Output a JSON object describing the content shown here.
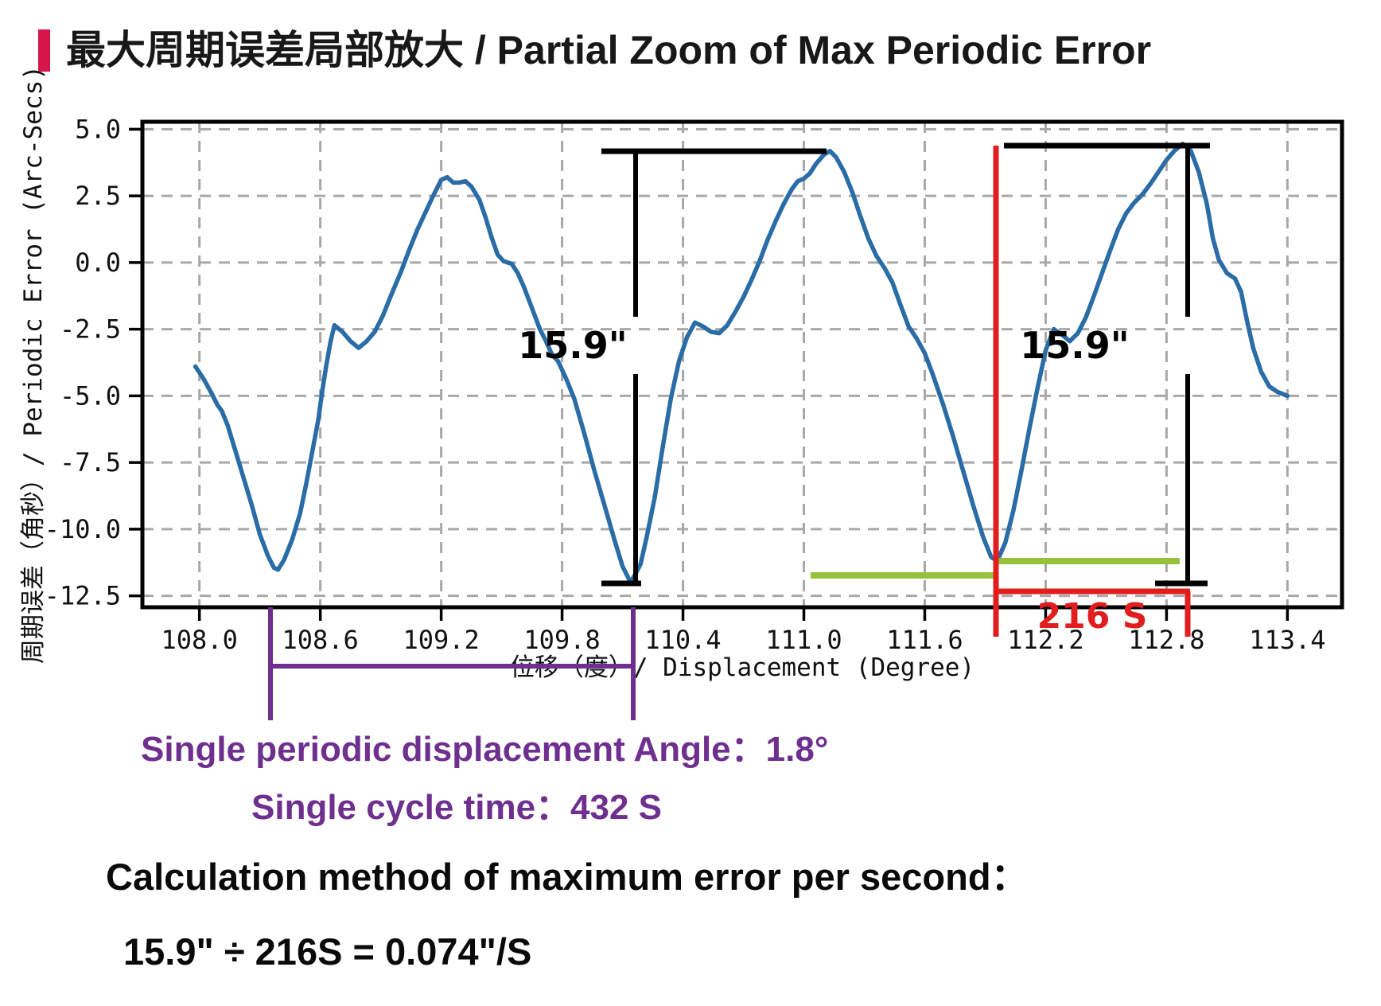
{
  "title": {
    "text": "最大周期误差局部放大 / Partial Zoom of Max Periodic Error",
    "accent_color": "#d4164a"
  },
  "chart_data": {
    "type": "line",
    "title": "",
    "xlabel": "位移（度）/ Displacement (Degree)",
    "ylabel": "周期误差（角秒）/ Periodic Error (Arc-Secs)",
    "xlim": [
      107.717,
      113.671
    ],
    "ylim": [
      -12.93,
      5.28
    ],
    "grid": true,
    "grid_color": "#a8a8a8",
    "line_color": "#2a6ca6",
    "x_ticks": [
      108.0,
      108.6,
      109.2,
      109.8,
      110.4,
      111.0,
      111.6,
      112.2,
      112.8,
      113.4
    ],
    "x_tick_labels": [
      "108.0",
      "108.6",
      "109.2",
      "109.8",
      "110.4",
      "111.0",
      "111.6",
      "112.2",
      "112.8",
      "113.4"
    ],
    "y_ticks": [
      5.0,
      2.5,
      0.0,
      -2.5,
      -5.0,
      -7.5,
      -10.0,
      -12.5
    ],
    "y_tick_labels": [
      "5.0",
      "2.5",
      "0.0",
      "-2.5",
      "-5.0",
      "-7.5",
      "-10.0",
      "-12.5"
    ],
    "series": [
      {
        "name": "periodic-error",
        "points": [
          [
            107.98,
            -3.9
          ],
          [
            108.02,
            -4.35
          ],
          [
            108.06,
            -4.9
          ],
          [
            108.09,
            -5.35
          ],
          [
            108.11,
            -5.55
          ],
          [
            108.14,
            -6.1
          ],
          [
            108.18,
            -7.1
          ],
          [
            108.22,
            -8.1
          ],
          [
            108.26,
            -9.1
          ],
          [
            108.3,
            -10.2
          ],
          [
            108.34,
            -11.0
          ],
          [
            108.37,
            -11.45
          ],
          [
            108.39,
            -11.52
          ],
          [
            108.42,
            -11.15
          ],
          [
            108.46,
            -10.4
          ],
          [
            108.5,
            -9.4
          ],
          [
            108.53,
            -8.3
          ],
          [
            108.56,
            -7.1
          ],
          [
            108.59,
            -5.9
          ],
          [
            108.61,
            -4.8
          ],
          [
            108.63,
            -3.85
          ],
          [
            108.65,
            -3.0
          ],
          [
            108.67,
            -2.35
          ],
          [
            108.71,
            -2.6
          ],
          [
            108.75,
            -2.95
          ],
          [
            108.79,
            -3.2
          ],
          [
            108.83,
            -2.95
          ],
          [
            108.87,
            -2.6
          ],
          [
            108.91,
            -2.0
          ],
          [
            108.95,
            -1.25
          ],
          [
            109.0,
            -0.35
          ],
          [
            109.04,
            0.45
          ],
          [
            109.08,
            1.2
          ],
          [
            109.12,
            1.85
          ],
          [
            109.16,
            2.5
          ],
          [
            109.2,
            3.1
          ],
          [
            109.23,
            3.2
          ],
          [
            109.26,
            3.0
          ],
          [
            109.29,
            3.0
          ],
          [
            109.32,
            3.05
          ],
          [
            109.35,
            2.85
          ],
          [
            109.39,
            2.35
          ],
          [
            109.42,
            1.7
          ],
          [
            109.45,
            0.95
          ],
          [
            109.48,
            0.3
          ],
          [
            109.51,
            0.05
          ],
          [
            109.55,
            -0.05
          ],
          [
            109.58,
            -0.4
          ],
          [
            109.61,
            -0.9
          ],
          [
            109.65,
            -1.7
          ],
          [
            109.69,
            -2.5
          ],
          [
            109.72,
            -2.95
          ],
          [
            109.75,
            -3.45
          ],
          [
            109.78,
            -3.7
          ],
          [
            109.82,
            -4.35
          ],
          [
            109.86,
            -5.1
          ],
          [
            109.91,
            -6.4
          ],
          [
            109.96,
            -7.8
          ],
          [
            110.01,
            -9.1
          ],
          [
            110.06,
            -10.4
          ],
          [
            110.1,
            -11.4
          ],
          [
            110.14,
            -12.0
          ],
          [
            110.17,
            -11.6
          ],
          [
            110.19,
            -11.3
          ],
          [
            110.22,
            -10.3
          ],
          [
            110.26,
            -8.8
          ],
          [
            110.3,
            -6.9
          ],
          [
            110.34,
            -5.1
          ],
          [
            110.38,
            -3.7
          ],
          [
            110.42,
            -2.8
          ],
          [
            110.46,
            -2.25
          ],
          [
            110.5,
            -2.4
          ],
          [
            110.54,
            -2.6
          ],
          [
            110.58,
            -2.65
          ],
          [
            110.62,
            -2.35
          ],
          [
            110.66,
            -1.85
          ],
          [
            110.7,
            -1.3
          ],
          [
            110.74,
            -0.65
          ],
          [
            110.78,
            0.05
          ],
          [
            110.82,
            0.85
          ],
          [
            110.86,
            1.55
          ],
          [
            110.9,
            2.2
          ],
          [
            110.94,
            2.75
          ],
          [
            110.97,
            3.05
          ],
          [
            111.0,
            3.15
          ],
          [
            111.03,
            3.35
          ],
          [
            111.06,
            3.7
          ],
          [
            111.1,
            4.05
          ],
          [
            111.13,
            4.18
          ],
          [
            111.16,
            3.95
          ],
          [
            111.2,
            3.4
          ],
          [
            111.24,
            2.65
          ],
          [
            111.28,
            1.75
          ],
          [
            111.32,
            0.9
          ],
          [
            111.36,
            0.25
          ],
          [
            111.4,
            -0.2
          ],
          [
            111.44,
            -0.75
          ],
          [
            111.48,
            -1.6
          ],
          [
            111.52,
            -2.4
          ],
          [
            111.56,
            -2.85
          ],
          [
            111.6,
            -3.4
          ],
          [
            111.64,
            -4.2
          ],
          [
            111.69,
            -5.3
          ],
          [
            111.74,
            -6.5
          ],
          [
            111.79,
            -7.8
          ],
          [
            111.84,
            -9.1
          ],
          [
            111.89,
            -10.3
          ],
          [
            111.93,
            -11.05
          ],
          [
            111.96,
            -11.2
          ],
          [
            112.0,
            -10.5
          ],
          [
            112.04,
            -9.3
          ],
          [
            112.08,
            -7.8
          ],
          [
            112.12,
            -6.2
          ],
          [
            112.16,
            -4.7
          ],
          [
            112.2,
            -3.3
          ],
          [
            112.24,
            -2.5
          ],
          [
            112.28,
            -2.7
          ],
          [
            112.32,
            -2.95
          ],
          [
            112.36,
            -2.65
          ],
          [
            112.4,
            -2.05
          ],
          [
            112.44,
            -1.25
          ],
          [
            112.48,
            -0.4
          ],
          [
            112.52,
            0.45
          ],
          [
            112.56,
            1.25
          ],
          [
            112.6,
            1.85
          ],
          [
            112.64,
            2.25
          ],
          [
            112.68,
            2.55
          ],
          [
            112.72,
            2.95
          ],
          [
            112.76,
            3.4
          ],
          [
            112.8,
            3.85
          ],
          [
            112.84,
            4.2
          ],
          [
            112.88,
            4.45
          ],
          [
            112.92,
            4.2
          ],
          [
            112.96,
            3.4
          ],
          [
            113.0,
            2.2
          ],
          [
            113.03,
            0.9
          ],
          [
            113.06,
            0.1
          ],
          [
            113.1,
            -0.4
          ],
          [
            113.14,
            -0.6
          ],
          [
            113.17,
            -1.1
          ],
          [
            113.2,
            -2.2
          ],
          [
            113.23,
            -3.2
          ],
          [
            113.27,
            -4.1
          ],
          [
            113.31,
            -4.65
          ],
          [
            113.35,
            -4.85
          ],
          [
            113.4,
            -5.0
          ]
        ]
      }
    ]
  },
  "annotations": {
    "mid_measure": {
      "label": "15.9\"",
      "color": "#000000"
    },
    "right_measure": {
      "label": "15.9\"",
      "color": "#000000"
    },
    "time_span": {
      "label": "216 S",
      "color": "#e11d1d"
    },
    "green_ref_color": "#97c13d",
    "purple_bracket": {
      "color": "#6e2f8f"
    }
  },
  "notes": {
    "line1": "Single periodic displacement Angle：1.8°",
    "line2": "Single cycle time：432 S",
    "line3": "Calculation method of maximum error per second：",
    "line4": "15.9\" ÷ 216S = 0.074\"/S",
    "purple_color": "#6e2f8f"
  }
}
